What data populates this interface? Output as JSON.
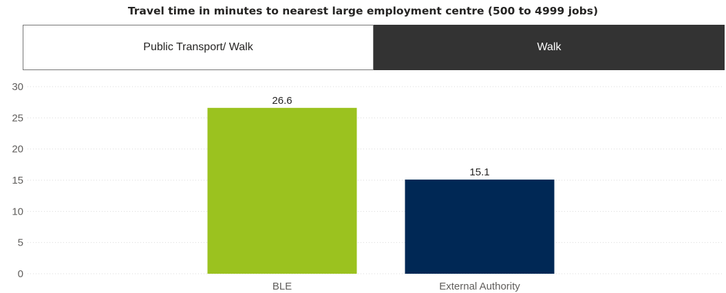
{
  "title": "Travel time in minutes to nearest large employment centre (500 to 4999 jobs)",
  "slicer": {
    "options": [
      {
        "label": "Public Transport/ Walk",
        "selected": false
      },
      {
        "label": "Walk",
        "selected": true
      }
    ],
    "colors": {
      "selected_bg": "#333333",
      "selected_text": "#ffffff",
      "unselected_bg": "#ffffff",
      "unselected_text": "#252423"
    }
  },
  "chart_data": {
    "type": "bar",
    "categories": [
      "BLE",
      "External Authority"
    ],
    "values": [
      26.6,
      15.1
    ],
    "data_labels": [
      "26.6",
      "15.1"
    ],
    "colors": [
      "#9BC21F",
      "#002855"
    ],
    "ylim": [
      0,
      30
    ],
    "yticks": [
      "0",
      "5",
      "10",
      "15",
      "20",
      "25",
      "30"
    ],
    "grid": true,
    "legend": "none"
  }
}
